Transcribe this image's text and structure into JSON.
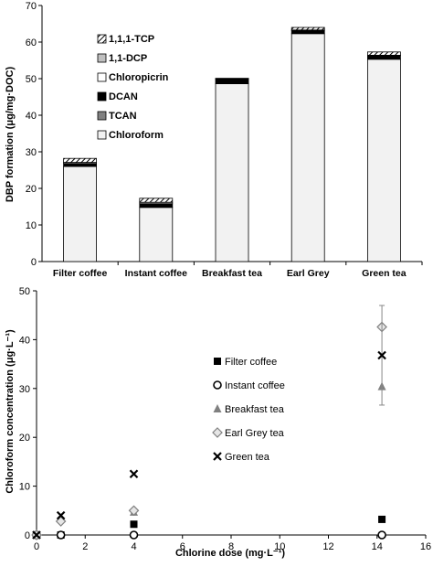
{
  "chart_data": [
    {
      "type": "bar",
      "stacked": true,
      "ylabel": "DBP formation (μg/mg·DOC)",
      "xlabel": "",
      "ylim": [
        0,
        70
      ],
      "yticks": [
        0,
        10,
        20,
        30,
        40,
        50,
        60,
        70
      ],
      "grid": false,
      "legend_position": "top-left",
      "categories": [
        "Filter coffee",
        "Instant coffee",
        "Breakfast tea",
        "Earl Grey",
        "Green tea"
      ],
      "series": [
        {
          "name": "Chloroform",
          "values": [
            26,
            14.8,
            48.6,
            62.3,
            55.3
          ],
          "color": "#f2f2f2",
          "pattern": "solid"
        },
        {
          "name": "TCAN",
          "values": [
            0,
            0,
            0,
            0,
            0
          ],
          "color": "#808080",
          "pattern": "solid"
        },
        {
          "name": "DCAN",
          "values": [
            0.8,
            1.0,
            1.3,
            0.9,
            1.0
          ],
          "color": "#000000",
          "pattern": "solid"
        },
        {
          "name": "Chloropicrin",
          "values": [
            0,
            0,
            0,
            0,
            0
          ],
          "color": "#ffffff",
          "pattern": "solid"
        },
        {
          "name": "1,1-DCP",
          "values": [
            0.3,
            0.4,
            0.1,
            0.1,
            0.1
          ],
          "color": "#bfbfbf",
          "pattern": "solid"
        },
        {
          "name": "1,1,1-TCP",
          "values": [
            1.1,
            1.1,
            0.1,
            0.7,
            0.9
          ],
          "color": "#ffffff",
          "pattern": "hatch"
        }
      ]
    },
    {
      "type": "scatter",
      "xlabel": "Chlorine dose (mg·L⁻¹)",
      "ylabel": "Chloroform concentration (μg·L⁻¹)",
      "xlim": [
        0,
        16
      ],
      "ylim": [
        0,
        50
      ],
      "xticks": [
        0,
        2,
        4,
        6,
        8,
        10,
        12,
        14,
        16
      ],
      "yticks": [
        0,
        10,
        20,
        30,
        40,
        50
      ],
      "grid": false,
      "legend_position": "center-right",
      "series": [
        {
          "name": "Filter coffee",
          "marker": "square-filled",
          "color": "#000000",
          "x": [
            0,
            1,
            4,
            14.2
          ],
          "y": [
            0,
            0,
            2.2,
            3.2
          ]
        },
        {
          "name": "Instant coffee",
          "marker": "circle-open",
          "color": "#000000",
          "x": [
            0,
            1,
            4,
            14.2
          ],
          "y": [
            0,
            0,
            0,
            0
          ]
        },
        {
          "name": "Breakfast tea",
          "marker": "triangle-filled",
          "color": "#808080",
          "x": [
            0,
            1,
            4,
            14.2
          ],
          "y": [
            0,
            3.5,
            4.7,
            30.4
          ]
        },
        {
          "name": "Earl Grey tea",
          "marker": "diamond-open",
          "color": "#808080",
          "x": [
            0,
            1,
            4,
            14.2
          ],
          "y": [
            0,
            2.8,
            5.0,
            42.6
          ]
        },
        {
          "name": "Green tea",
          "marker": "x",
          "color": "#000000",
          "x": [
            0,
            1,
            4,
            14.2
          ],
          "y": [
            0,
            4.0,
            12.5,
            36.8
          ],
          "error": [
            0,
            0,
            0,
            10.2
          ]
        }
      ]
    }
  ]
}
